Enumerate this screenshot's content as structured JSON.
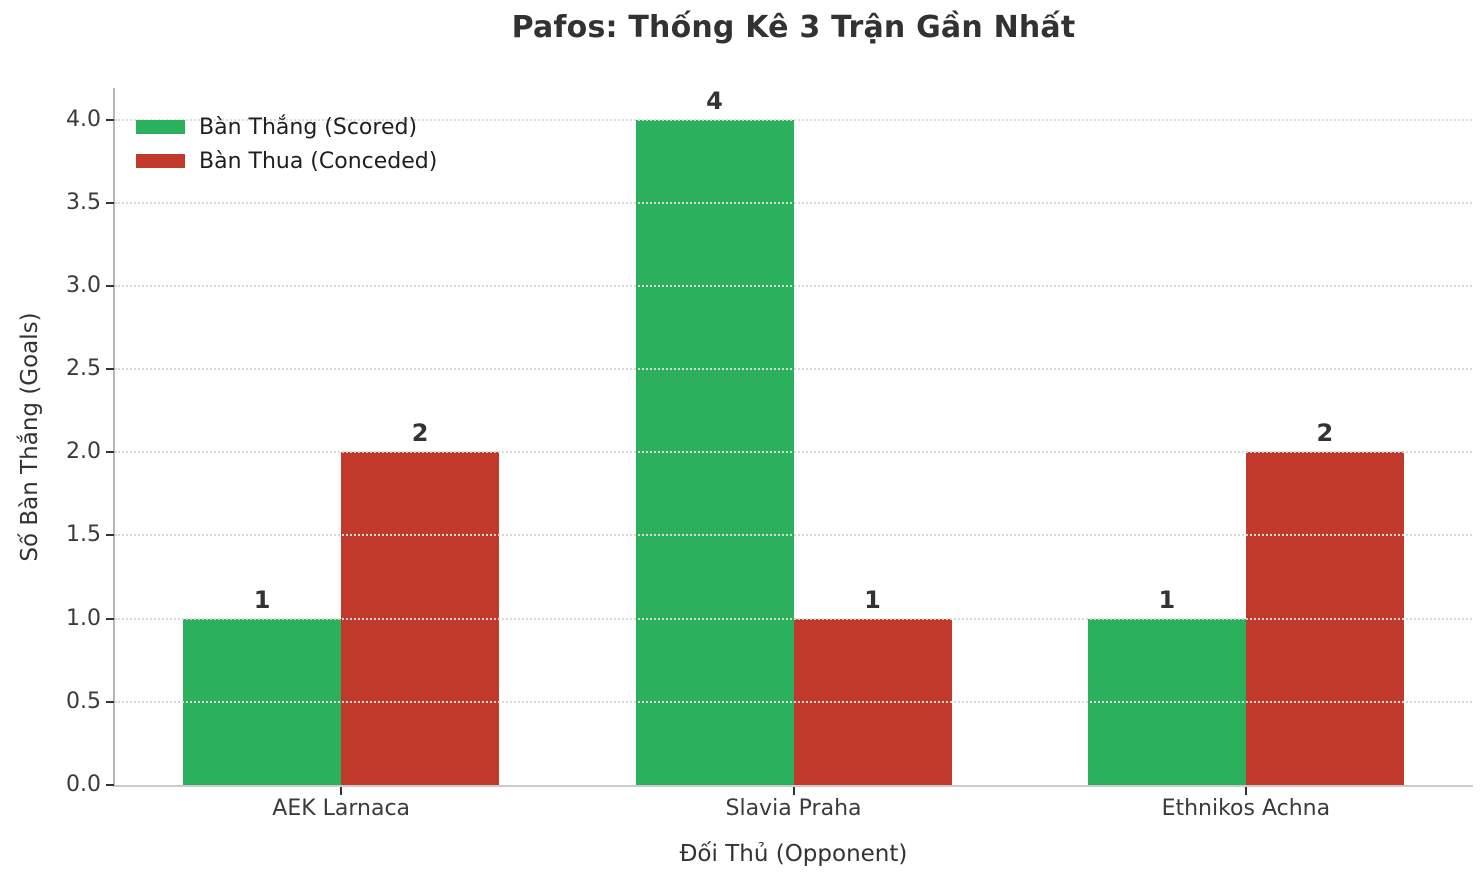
{
  "chart_data": {
    "type": "bar",
    "title": "Pafos: Thống Kê 3 Trận Gần Nhất",
    "categories": [
      "AEK Larnaca",
      "Slavia Praha",
      "Ethnikos Achna"
    ],
    "series": [
      {
        "name": "Bàn Thắng (Scored)",
        "color": "#2bb05e",
        "values": [
          1,
          4,
          1
        ]
      },
      {
        "name": "Bàn Thua (Conceded)",
        "color": "#c0392b",
        "values": [
          2,
          1,
          2
        ]
      }
    ],
    "xlabel": "Đối Thủ (Opponent)",
    "ylabel": "Số Bàn Thắng (Goals)",
    "ylim": [
      0,
      4.19
    ],
    "yticks": [
      0,
      0.5,
      1,
      1.5,
      2,
      2.5,
      3,
      3.5,
      4
    ],
    "ytick_labels": [
      "0.0",
      "0.5",
      "1.0",
      "1.5",
      "2.0",
      "2.5",
      "3.0",
      "3.5",
      "4.0"
    ],
    "value_labels": [
      "1",
      "4",
      "1",
      "2",
      "1",
      "2"
    ],
    "grid": "horizontal-dotted",
    "grid_color": "#d9d9d9",
    "legend_position": "upper-left",
    "text_color": "#333333"
  }
}
